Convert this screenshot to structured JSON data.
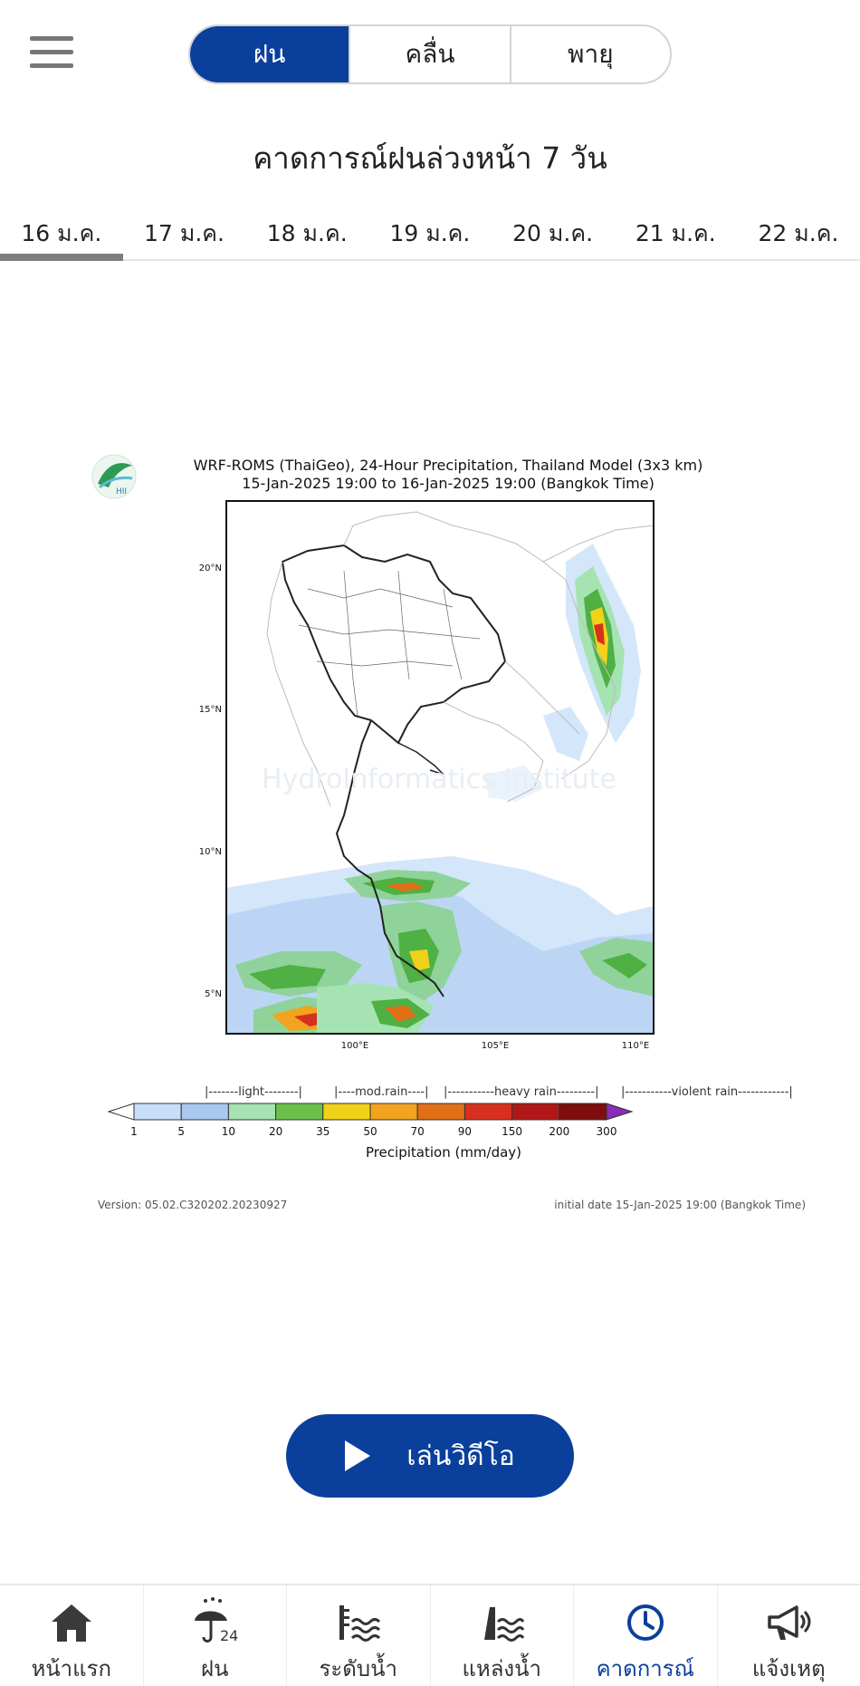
{
  "header": {
    "tabs": [
      {
        "label": "ฝน",
        "active": true
      },
      {
        "label": "คลื่น",
        "active": false
      },
      {
        "label": "พายุ",
        "active": false
      }
    ],
    "title": "คาดการณ์ฝนล่วงหน้า 7 วัน"
  },
  "dates": [
    {
      "label": "16 ม.ค.",
      "active": true
    },
    {
      "label": "17 ม.ค.",
      "active": false
    },
    {
      "label": "18 ม.ค.",
      "active": false
    },
    {
      "label": "19 ม.ค.",
      "active": false
    },
    {
      "label": "20 ม.ค.",
      "active": false
    },
    {
      "label": "21 ม.ค.",
      "active": false
    },
    {
      "label": "22 ม.ค.",
      "active": false
    }
  ],
  "figure": {
    "logo_text": "HII",
    "title_line1": "WRF-ROMS (ThaiGeo), 24-Hour Precipitation, Thailand Model (3x3 km)",
    "title_line2": "15-Jan-2025 19:00 to 16-Jan-2025 19:00 (Bangkok Time)",
    "watermark": "HydroInformatics Institute",
    "lat_labels": [
      "20°N",
      "15°N",
      "10°N",
      "5°N"
    ],
    "lon_labels": [
      "100°E",
      "105°E",
      "110°E"
    ],
    "category_labels": [
      "|-------light--------|",
      "|----mod.rain----|",
      "|-----------heavy rain---------|",
      "|-----------violent rain------------|"
    ],
    "colorbar_ticks": [
      "1",
      "5",
      "10",
      "20",
      "35",
      "50",
      "70",
      "90",
      "150",
      "200",
      "300"
    ],
    "colorbar_colors": [
      "#c8def8",
      "#a9c8f0",
      "#a6e3b3",
      "#6cc04a",
      "#f0d21a",
      "#f2a31f",
      "#e06f18",
      "#d7301f",
      "#b01818",
      "#7e0d0d"
    ],
    "colorbar_label": "Precipitation (mm/day)",
    "version": "Version: 05.02.C320202.20230927",
    "initial_date": "initial date 15-Jan-2025 19:00 (Bangkok Time)"
  },
  "play_button": {
    "label": "เล่นวิดีโอ"
  },
  "nav": [
    {
      "label": "หน้าแรก",
      "icon": "home-icon",
      "active": false
    },
    {
      "label": "ฝน",
      "icon": "umbrella-rain-icon",
      "badge": "24",
      "active": false
    },
    {
      "label": "ระดับน้ำ",
      "icon": "water-level-icon",
      "active": false
    },
    {
      "label": "แหล่งน้ำ",
      "icon": "dam-icon",
      "active": false
    },
    {
      "label": "คาดการณ์",
      "icon": "clock-icon",
      "active": true
    },
    {
      "label": "แจ้งเหตุ",
      "icon": "megaphone-icon",
      "active": false
    }
  ]
}
